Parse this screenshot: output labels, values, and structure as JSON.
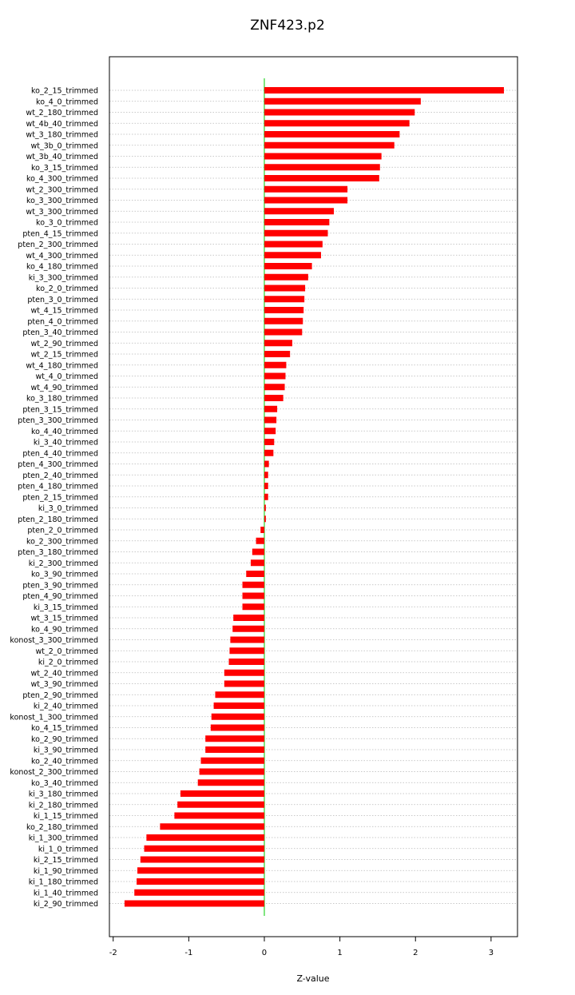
{
  "chart_data": {
    "type": "bar",
    "orientation": "horizontal",
    "title": "ZNF423.p2",
    "xlabel": "Z-value",
    "ylabel": "",
    "xlim": [
      -2.05,
      3.35
    ],
    "xticks": [
      -2,
      -1,
      0,
      1,
      2,
      3
    ],
    "grid": "horizontal dotted",
    "zero_line_color": "#00cc00",
    "bar_color": "#ff0000",
    "categories": [
      "ko_2_15_trimmed",
      "ko_4_0_trimmed",
      "wt_2_180_trimmed",
      "wt_4b_40_trimmed",
      "wt_3_180_trimmed",
      "wt_3b_0_trimmed",
      "wt_3b_40_trimmed",
      "ko_3_15_trimmed",
      "ko_4_300_trimmed",
      "wt_2_300_trimmed",
      "ko_3_300_trimmed",
      "wt_3_300_trimmed",
      "ko_3_0_trimmed",
      "pten_4_15_trimmed",
      "pten_2_300_trimmed",
      "wt_4_300_trimmed",
      "ko_4_180_trimmed",
      "ki_3_300_trimmed",
      "ko_2_0_trimmed",
      "pten_3_0_trimmed",
      "wt_4_15_trimmed",
      "pten_4_0_trimmed",
      "pten_3_40_trimmed",
      "wt_2_90_trimmed",
      "wt_2_15_trimmed",
      "wt_4_180_trimmed",
      "wt_4_0_trimmed",
      "wt_4_90_trimmed",
      "ko_3_180_trimmed",
      "pten_3_15_trimmed",
      "pten_3_300_trimmed",
      "ko_4_40_trimmed",
      "ki_3_40_trimmed",
      "pten_4_40_trimmed",
      "pten_4_300_trimmed",
      "pten_2_40_trimmed",
      "pten_4_180_trimmed",
      "pten_2_15_trimmed",
      "ki_3_0_trimmed",
      "pten_2_180_trimmed",
      "pten_2_0_trimmed",
      "ko_2_300_trimmed",
      "pten_3_180_trimmed",
      "ki_2_300_trimmed",
      "ko_3_90_trimmed",
      "pten_3_90_trimmed",
      "pten_4_90_trimmed",
      "ki_3_15_trimmed",
      "wt_3_15_trimmed",
      "ko_4_90_trimmed",
      "konost_3_300_trimmed",
      "wt_2_0_trimmed",
      "ki_2_0_trimmed",
      "wt_2_40_trimmed",
      "wt_3_90_trimmed",
      "pten_2_90_trimmed",
      "ki_2_40_trimmed",
      "konost_1_300_trimmed",
      "ko_4_15_trimmed",
      "ko_2_90_trimmed",
      "ki_3_90_trimmed",
      "ko_2_40_trimmed",
      "konost_2_300_trimmed",
      "ko_3_40_trimmed",
      "ki_3_180_trimmed",
      "ki_2_180_trimmed",
      "ki_1_15_trimmed",
      "ko_2_180_trimmed",
      "ki_1_300_trimmed",
      "ki_1_0_trimmed",
      "ki_2_15_trimmed",
      "ki_1_90_trimmed",
      "ki_1_180_trimmed",
      "ki_1_40_trimmed",
      "ki_2_90_trimmed"
    ],
    "values": [
      3.17,
      2.07,
      1.99,
      1.92,
      1.79,
      1.72,
      1.55,
      1.53,
      1.52,
      1.1,
      1.1,
      0.92,
      0.86,
      0.84,
      0.77,
      0.75,
      0.63,
      0.58,
      0.54,
      0.53,
      0.52,
      0.51,
      0.5,
      0.37,
      0.34,
      0.29,
      0.28,
      0.27,
      0.25,
      0.17,
      0.16,
      0.15,
      0.13,
      0.12,
      0.06,
      0.05,
      0.05,
      0.05,
      0.02,
      0.02,
      -0.05,
      -0.11,
      -0.16,
      -0.18,
      -0.24,
      -0.29,
      -0.29,
      -0.29,
      -0.41,
      -0.42,
      -0.45,
      -0.46,
      -0.47,
      -0.53,
      -0.53,
      -0.65,
      -0.67,
      -0.7,
      -0.71,
      -0.78,
      -0.78,
      -0.84,
      -0.86,
      -0.88,
      -1.11,
      -1.15,
      -1.19,
      -1.38,
      -1.56,
      -1.59,
      -1.64,
      -1.68,
      -1.69,
      -1.72,
      -1.85
    ]
  }
}
